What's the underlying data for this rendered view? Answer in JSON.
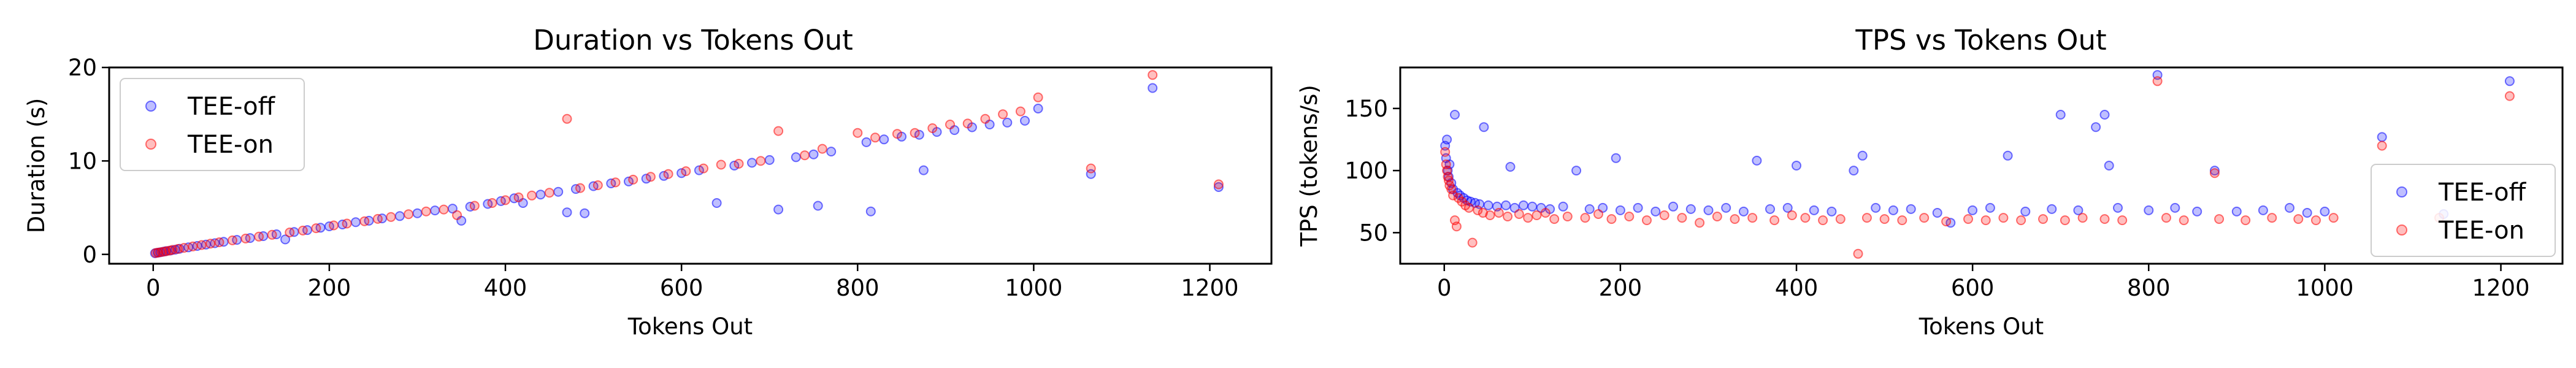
{
  "chart_data": [
    {
      "type": "scatter",
      "title": "Duration vs Tokens Out",
      "xlabel": "Tokens Out",
      "ylabel": "Duration (s)",
      "xlim": [
        -50,
        1270
      ],
      "ylim": [
        -1,
        20
      ],
      "xticks": [
        0,
        200,
        400,
        600,
        800,
        1000,
        1200
      ],
      "yticks": [
        0,
        10,
        20
      ],
      "legend_position": "upper left",
      "grid": false,
      "series": [
        {
          "name": "TEE-off",
          "color": "#0000ff",
          "points": [
            [
              2,
              0.12
            ],
            [
              5,
              0.18
            ],
            [
              8,
              0.22
            ],
            [
              12,
              0.3
            ],
            [
              15,
              0.35
            ],
            [
              20,
              0.42
            ],
            [
              25,
              0.5
            ],
            [
              30,
              0.6
            ],
            [
              40,
              0.75
            ],
            [
              50,
              0.9
            ],
            [
              60,
              1.05
            ],
            [
              70,
              1.2
            ],
            [
              80,
              1.35
            ],
            [
              95,
              1.55
            ],
            [
              110,
              1.75
            ],
            [
              125,
              1.95
            ],
            [
              140,
              2.15
            ],
            [
              150,
              1.6
            ],
            [
              160,
              2.4
            ],
            [
              175,
              2.6
            ],
            [
              190,
              2.85
            ],
            [
              200,
              3.0
            ],
            [
              215,
              3.2
            ],
            [
              230,
              3.45
            ],
            [
              245,
              3.6
            ],
            [
              260,
              3.85
            ],
            [
              280,
              4.1
            ],
            [
              300,
              4.4
            ],
            [
              320,
              4.7
            ],
            [
              340,
              4.9
            ],
            [
              350,
              3.6
            ],
            [
              360,
              5.1
            ],
            [
              380,
              5.4
            ],
            [
              395,
              5.7
            ],
            [
              410,
              6.0
            ],
            [
              420,
              5.5
            ],
            [
              440,
              6.4
            ],
            [
              460,
              6.7
            ],
            [
              470,
              4.5
            ],
            [
              480,
              7.0
            ],
            [
              490,
              4.4
            ],
            [
              500,
              7.3
            ],
            [
              520,
              7.6
            ],
            [
              540,
              7.8
            ],
            [
              560,
              8.1
            ],
            [
              580,
              8.4
            ],
            [
              600,
              8.7
            ],
            [
              620,
              9.0
            ],
            [
              640,
              5.5
            ],
            [
              660,
              9.5
            ],
            [
              680,
              9.8
            ],
            [
              700,
              10.1
            ],
            [
              710,
              4.8
            ],
            [
              730,
              10.4
            ],
            [
              750,
              10.7
            ],
            [
              755,
              5.2
            ],
            [
              770,
              11.0
            ],
            [
              810,
              12.0
            ],
            [
              815,
              4.6
            ],
            [
              830,
              12.3
            ],
            [
              850,
              12.6
            ],
            [
              870,
              12.8
            ],
            [
              875,
              9.0
            ],
            [
              890,
              13.1
            ],
            [
              910,
              13.3
            ],
            [
              930,
              13.6
            ],
            [
              950,
              13.9
            ],
            [
              970,
              14.1
            ],
            [
              990,
              14.3
            ],
            [
              1005,
              15.6
            ],
            [
              1065,
              8.6
            ],
            [
              1135,
              17.8
            ],
            [
              1210,
              7.2
            ]
          ]
        },
        {
          "name": "TEE-on",
          "color": "#ff0000",
          "points": [
            [
              3,
              0.15
            ],
            [
              6,
              0.2
            ],
            [
              10,
              0.26
            ],
            [
              14,
              0.33
            ],
            [
              18,
              0.4
            ],
            [
              22,
              0.48
            ],
            [
              28,
              0.58
            ],
            [
              35,
              0.7
            ],
            [
              45,
              0.85
            ],
            [
              55,
              1.0
            ],
            [
              65,
              1.15
            ],
            [
              75,
              1.3
            ],
            [
              90,
              1.5
            ],
            [
              105,
              1.7
            ],
            [
              120,
              1.9
            ],
            [
              135,
              2.1
            ],
            [
              155,
              2.35
            ],
            [
              170,
              2.55
            ],
            [
              185,
              2.8
            ],
            [
              205,
              3.1
            ],
            [
              220,
              3.3
            ],
            [
              240,
              3.55
            ],
            [
              255,
              3.8
            ],
            [
              270,
              4.0
            ],
            [
              290,
              4.3
            ],
            [
              310,
              4.6
            ],
            [
              330,
              4.8
            ],
            [
              345,
              4.2
            ],
            [
              365,
              5.2
            ],
            [
              385,
              5.5
            ],
            [
              400,
              5.8
            ],
            [
              415,
              6.1
            ],
            [
              430,
              6.3
            ],
            [
              450,
              6.6
            ],
            [
              470,
              14.5
            ],
            [
              485,
              7.1
            ],
            [
              505,
              7.4
            ],
            [
              525,
              7.7
            ],
            [
              545,
              8.0
            ],
            [
              565,
              8.3
            ],
            [
              585,
              8.6
            ],
            [
              605,
              8.9
            ],
            [
              625,
              9.2
            ],
            [
              645,
              9.6
            ],
            [
              665,
              9.7
            ],
            [
              690,
              10.0
            ],
            [
              710,
              13.2
            ],
            [
              740,
              10.6
            ],
            [
              760,
              11.3
            ],
            [
              800,
              13.0
            ],
            [
              820,
              12.5
            ],
            [
              845,
              12.9
            ],
            [
              865,
              13.0
            ],
            [
              885,
              13.5
            ],
            [
              905,
              13.9
            ],
            [
              925,
              14.0
            ],
            [
              945,
              14.5
            ],
            [
              965,
              15.0
            ],
            [
              985,
              15.3
            ],
            [
              1005,
              16.8
            ],
            [
              1065,
              9.2
            ],
            [
              1135,
              19.2
            ],
            [
              1210,
              7.5
            ]
          ]
        }
      ]
    },
    {
      "type": "scatter",
      "title": "TPS vs Tokens Out",
      "xlabel": "Tokens Out",
      "ylabel": "TPS (tokens/s)",
      "xlim": [
        -50,
        1270
      ],
      "ylim": [
        25,
        183
      ],
      "xticks": [
        0,
        200,
        400,
        600,
        800,
        1000,
        1200
      ],
      "yticks": [
        50,
        100,
        150
      ],
      "legend_position": "lower right",
      "grid": false,
      "series": [
        {
          "name": "TEE-off",
          "color": "#0000ff",
          "points": [
            [
              1,
              120
            ],
            [
              2,
              110
            ],
            [
              3,
              125
            ],
            [
              4,
              100
            ],
            [
              5,
              95
            ],
            [
              6,
              105
            ],
            [
              8,
              90
            ],
            [
              10,
              85
            ],
            [
              12,
              145
            ],
            [
              15,
              82
            ],
            [
              18,
              80
            ],
            [
              22,
              78
            ],
            [
              26,
              76
            ],
            [
              30,
              75
            ],
            [
              35,
              74
            ],
            [
              40,
              73
            ],
            [
              45,
              135
            ],
            [
              50,
              72
            ],
            [
              60,
              71
            ],
            [
              70,
              72
            ],
            [
              75,
              103
            ],
            [
              80,
              70
            ],
            [
              90,
              72
            ],
            [
              100,
              71
            ],
            [
              110,
              70
            ],
            [
              120,
              69
            ],
            [
              135,
              71
            ],
            [
              150,
              100
            ],
            [
              165,
              69
            ],
            [
              180,
              70
            ],
            [
              195,
              110
            ],
            [
              200,
              68
            ],
            [
              220,
              70
            ],
            [
              240,
              67
            ],
            [
              260,
              71
            ],
            [
              280,
              69
            ],
            [
              300,
              68
            ],
            [
              320,
              70
            ],
            [
              340,
              67
            ],
            [
              355,
              108
            ],
            [
              370,
              69
            ],
            [
              390,
              70
            ],
            [
              400,
              104
            ],
            [
              420,
              68
            ],
            [
              440,
              67
            ],
            [
              465,
              100
            ],
            [
              475,
              112
            ],
            [
              490,
              70
            ],
            [
              510,
              68
            ],
            [
              530,
              69
            ],
            [
              560,
              66
            ],
            [
              575,
              58
            ],
            [
              600,
              68
            ],
            [
              620,
              70
            ],
            [
              640,
              112
            ],
            [
              660,
              67
            ],
            [
              690,
              69
            ],
            [
              700,
              145
            ],
            [
              720,
              68
            ],
            [
              740,
              135
            ],
            [
              750,
              145
            ],
            [
              755,
              104
            ],
            [
              765,
              70
            ],
            [
              800,
              68
            ],
            [
              810,
              177
            ],
            [
              830,
              70
            ],
            [
              855,
              67
            ],
            [
              875,
              100
            ],
            [
              900,
              67
            ],
            [
              930,
              68
            ],
            [
              960,
              70
            ],
            [
              980,
              66
            ],
            [
              1000,
              67
            ],
            [
              1065,
              127
            ],
            [
              1135,
              65
            ],
            [
              1210,
              172
            ]
          ]
        },
        {
          "name": "TEE-on",
          "color": "#ff0000",
          "points": [
            [
              1,
              115
            ],
            [
              2,
              105
            ],
            [
              3,
              100
            ],
            [
              4,
              95
            ],
            [
              5,
              92
            ],
            [
              6,
              88
            ],
            [
              8,
              85
            ],
            [
              10,
              80
            ],
            [
              12,
              60
            ],
            [
              14,
              55
            ],
            [
              16,
              78
            ],
            [
              20,
              75
            ],
            [
              24,
              72
            ],
            [
              28,
              70
            ],
            [
              32,
              42
            ],
            [
              38,
              68
            ],
            [
              44,
              66
            ],
            [
              52,
              64
            ],
            [
              62,
              66
            ],
            [
              72,
              63
            ],
            [
              85,
              65
            ],
            [
              95,
              62
            ],
            [
              105,
              64
            ],
            [
              115,
              66
            ],
            [
              125,
              61
            ],
            [
              140,
              63
            ],
            [
              160,
              62
            ],
            [
              175,
              65
            ],
            [
              190,
              61
            ],
            [
              210,
              63
            ],
            [
              230,
              60
            ],
            [
              250,
              64
            ],
            [
              270,
              62
            ],
            [
              290,
              58
            ],
            [
              310,
              63
            ],
            [
              330,
              61
            ],
            [
              350,
              62
            ],
            [
              375,
              60
            ],
            [
              395,
              64
            ],
            [
              410,
              62
            ],
            [
              430,
              60
            ],
            [
              450,
              61
            ],
            [
              470,
              33
            ],
            [
              480,
              62
            ],
            [
              500,
              61
            ],
            [
              520,
              60
            ],
            [
              545,
              62
            ],
            [
              570,
              59
            ],
            [
              595,
              61
            ],
            [
              615,
              60
            ],
            [
              635,
              62
            ],
            [
              655,
              60
            ],
            [
              680,
              61
            ],
            [
              705,
              60
            ],
            [
              725,
              62
            ],
            [
              750,
              61
            ],
            [
              770,
              60
            ],
            [
              810,
              172
            ],
            [
              820,
              62
            ],
            [
              840,
              60
            ],
            [
              875,
              98
            ],
            [
              880,
              61
            ],
            [
              910,
              60
            ],
            [
              940,
              62
            ],
            [
              970,
              61
            ],
            [
              990,
              60
            ],
            [
              1010,
              62
            ],
            [
              1065,
              120
            ],
            [
              1130,
              62
            ],
            [
              1210,
              160
            ]
          ]
        }
      ]
    }
  ]
}
